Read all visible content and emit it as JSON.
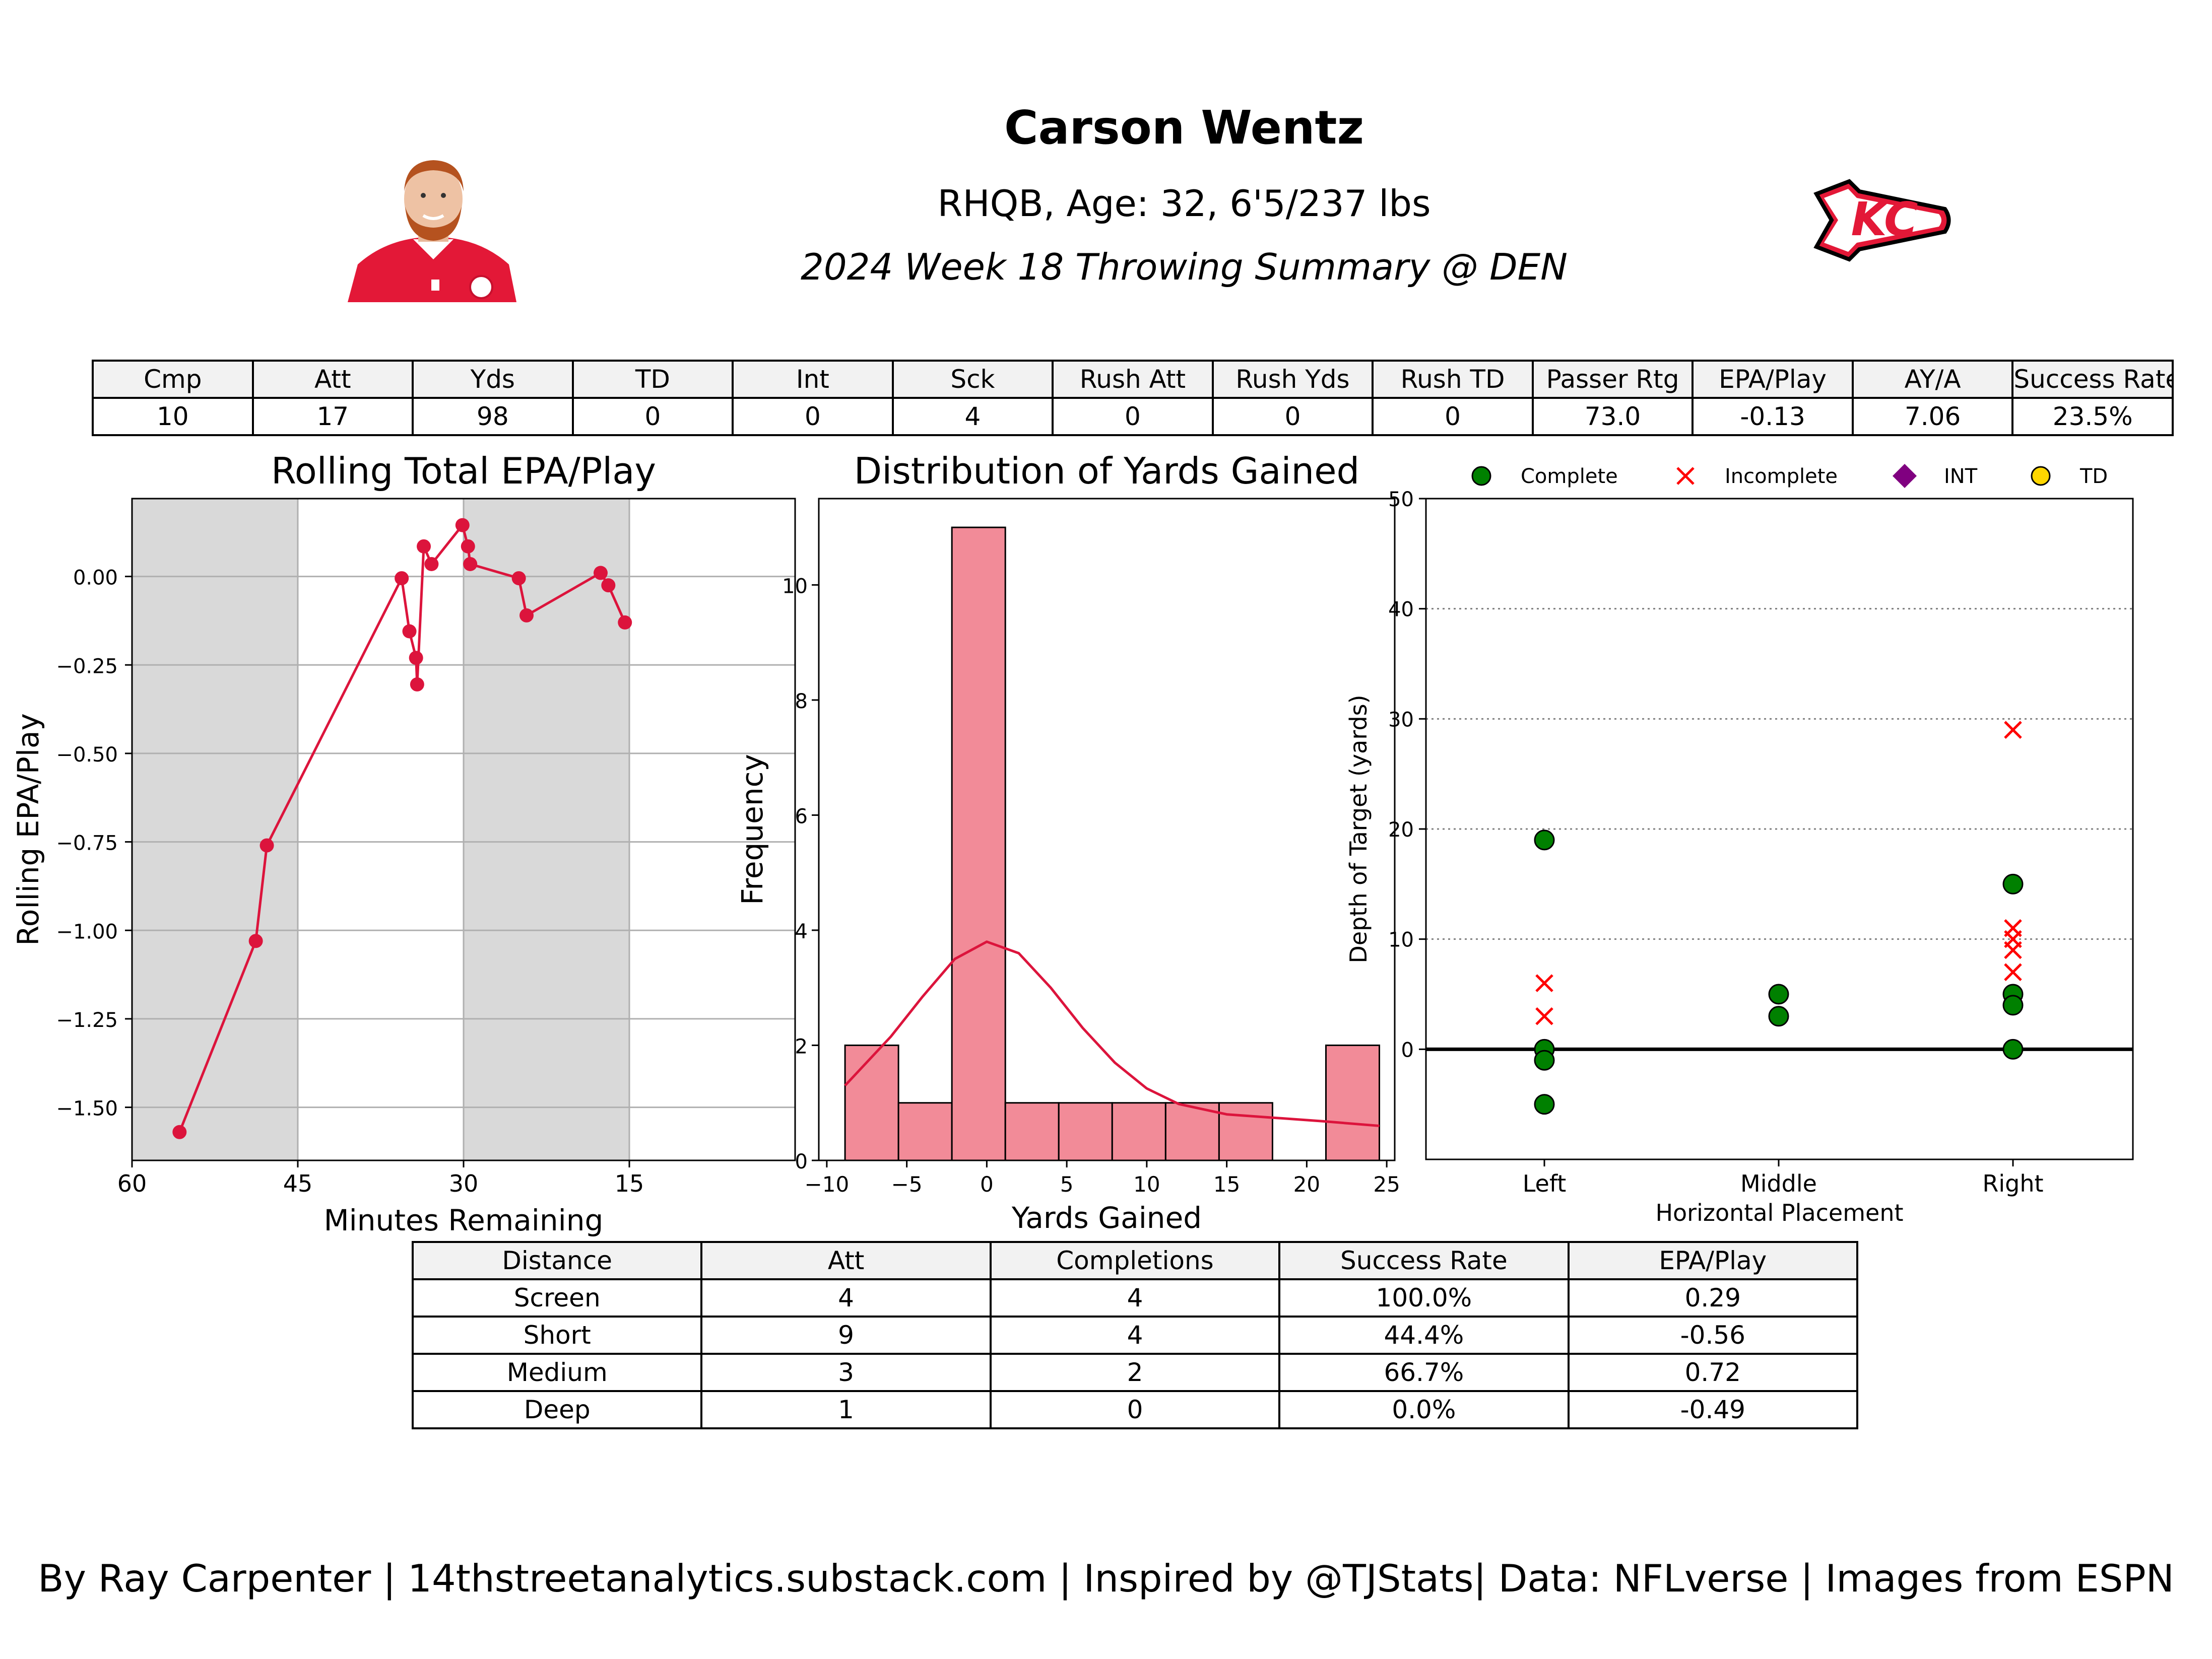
{
  "header": {
    "name": "Carson Wentz",
    "bio": "RHQB, Age: 32, 6'5/237 lbs",
    "summary": "2024 Week 18 Throwing Summary @ DEN"
  },
  "team_logo_text": "KC",
  "top_table": {
    "headers": [
      "Cmp",
      "Att",
      "Yds",
      "TD",
      "Int",
      "Sck",
      "Rush Att",
      "Rush Yds",
      "Rush TD",
      "Passer Rtg",
      "EPA/Play",
      "AY/A",
      "Success Rate"
    ],
    "values": [
      "10",
      "17",
      "98",
      "0",
      "0",
      "4",
      "0",
      "0",
      "0",
      "73.0",
      "-0.13",
      "7.06",
      "23.5%"
    ]
  },
  "bottom_table": {
    "headers": [
      "Distance",
      "Att",
      "Completions",
      "Success Rate",
      "EPA/Play"
    ],
    "rows": [
      [
        "Screen",
        "4",
        "4",
        "100.0%",
        "0.29"
      ],
      [
        "Short",
        "9",
        "4",
        "44.4%",
        "-0.56"
      ],
      [
        "Medium",
        "3",
        "2",
        "66.7%",
        "0.72"
      ],
      [
        "Deep",
        "1",
        "0",
        "0.0%",
        "-0.49"
      ]
    ]
  },
  "footer": "By Ray Carpenter | 14thstreetanalytics.substack.com | Inspired by @TJStats| Data: NFLverse | Images from ESPN",
  "chart_data": [
    {
      "type": "line",
      "title": "Rolling Total EPA/Play",
      "xlabel": "Minutes Remaining",
      "ylabel": "Rolling EPA/Play",
      "xlim": [
        60,
        0
      ],
      "ylim": [
        -1.65,
        0.22
      ],
      "xticks": [
        "60",
        "45",
        "30",
        "15"
      ],
      "yticks": [
        "0.00",
        "−0.25",
        "−0.50",
        "−0.75",
        "−1.00",
        "−1.25",
        "−1.50"
      ],
      "grid": true,
      "shaded_quarters": [
        [
          60,
          45
        ],
        [
          30,
          15
        ]
      ],
      "color": "#dc143c",
      "x": [
        55.7,
        48.8,
        47.8,
        35.6,
        34.9,
        34.3,
        34.2,
        33.6,
        32.9,
        30.1,
        29.6,
        29.4,
        25.0,
        24.3,
        17.6,
        16.9,
        15.4
      ],
      "y": [
        -1.57,
        -1.03,
        -0.76,
        -0.005,
        -0.155,
        -0.23,
        -0.305,
        0.085,
        0.035,
        0.145,
        0.085,
        0.035,
        -0.005,
        -0.11,
        0.01,
        -0.025,
        -0.13
      ]
    },
    {
      "type": "bar",
      "title": "Distribution of Yards Gained",
      "xlabel": "Yards Gained",
      "ylabel": "Frequency",
      "xlim": [
        -10.5,
        25.5
      ],
      "ylim": [
        0,
        11.5
      ],
      "xticks": [
        "−10",
        "−5",
        "0",
        "5",
        "10",
        "15",
        "20",
        "25"
      ],
      "yticks": [
        "0",
        "2",
        "4",
        "6",
        "8",
        "10"
      ],
      "bin_edges": [
        -8.86,
        -5.52,
        -2.18,
        1.16,
        4.5,
        7.84,
        11.18,
        14.52,
        17.86,
        21.2,
        24.54
      ],
      "counts": [
        2,
        1,
        11,
        1,
        1,
        1,
        1,
        1,
        0,
        2
      ],
      "bar_color": "#f28b98",
      "kde_color": "#dc143c",
      "kde": {
        "x": [
          -8.86,
          -6,
          -4,
          -2,
          0,
          2,
          4,
          6,
          8,
          10,
          12,
          15,
          18,
          21,
          24.54
        ],
        "y": [
          1.3,
          2.15,
          2.85,
          3.5,
          3.8,
          3.6,
          3.0,
          2.3,
          1.7,
          1.25,
          0.98,
          0.8,
          0.74,
          0.68,
          0.6
        ]
      }
    },
    {
      "type": "scatter",
      "title": "",
      "xlabel": "Horizontal Placement",
      "ylabel": "Depth of Target (yards)",
      "categories": [
        "Left",
        "Middle",
        "Right"
      ],
      "ylim": [
        -10,
        50
      ],
      "yticks": [
        "0",
        "10",
        "20",
        "30",
        "40",
        "50"
      ],
      "grid": "dotted-horizontal",
      "legend": {
        "placement": "top",
        "items": [
          {
            "label": "Complete",
            "marker": "circle",
            "color": "#008000"
          },
          {
            "label": "Incomplete",
            "marker": "x",
            "color": "#ff0000"
          },
          {
            "label": "INT",
            "marker": "diamond",
            "color": "#800080"
          },
          {
            "label": "TD",
            "marker": "circle",
            "color": "#ffd700"
          }
        ]
      },
      "complete": [
        {
          "x": "Left",
          "y": 19
        },
        {
          "x": "Left",
          "y": 0
        },
        {
          "x": "Left",
          "y": -1
        },
        {
          "x": "Left",
          "y": -5
        },
        {
          "x": "Middle",
          "y": 5
        },
        {
          "x": "Middle",
          "y": 3
        },
        {
          "x": "Right",
          "y": 15
        },
        {
          "x": "Right",
          "y": 5
        },
        {
          "x": "Right",
          "y": 4
        },
        {
          "x": "Right",
          "y": 0
        }
      ],
      "incomplete": [
        {
          "x": "Left",
          "y": 6
        },
        {
          "x": "Left",
          "y": 3
        },
        {
          "x": "Right",
          "y": 29
        },
        {
          "x": "Right",
          "y": 11
        },
        {
          "x": "Right",
          "y": 10
        },
        {
          "x": "Right",
          "y": 9
        },
        {
          "x": "Right",
          "y": 7
        }
      ]
    }
  ]
}
